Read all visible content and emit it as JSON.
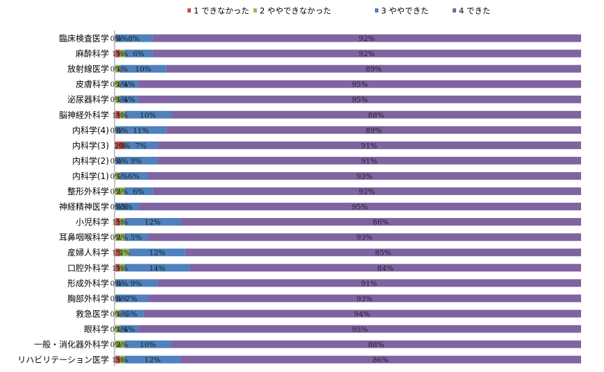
{
  "chart_data": {
    "type": "bar",
    "orientation": "horizontal",
    "stacked": "percent",
    "legend_position": "top",
    "grid": false,
    "series": [
      {
        "name": "1 できなかった",
        "color": "#C0504D"
      },
      {
        "name": "2 ややできなかった",
        "color": "#9BBB59"
      },
      {
        "name": "3 ややできた",
        "color": "#4F81BD"
      },
      {
        "name": "4 できた",
        "color": "#8064A2"
      }
    ],
    "categories": [
      {
        "name": "臨床検査医学",
        "values": [
          0,
          0,
          8,
          92
        ],
        "labels": [
          "0%",
          "0%",
          "8%",
          "92%"
        ]
      },
      {
        "name": "麻酔科学",
        "values": [
          1,
          1,
          6,
          92
        ],
        "labels": [
          "1%",
          "1%",
          "6%",
          "92%"
        ]
      },
      {
        "name": "放射線医学",
        "values": [
          0,
          1,
          10,
          89
        ],
        "labels": [
          "0%",
          "1%",
          "10%",
          "89%"
        ]
      },
      {
        "name": "皮膚科学",
        "values": [
          0,
          1,
          4,
          95
        ],
        "labels": [
          "0%",
          "1%",
          "4%",
          "95%"
        ]
      },
      {
        "name": "泌尿器科学",
        "values": [
          0,
          1,
          4,
          95
        ],
        "labels": [
          "0%",
          "1%",
          "4%",
          "95%"
        ]
      },
      {
        "name": "脳神経外科学",
        "values": [
          1,
          1,
          10,
          88
        ],
        "labels": [
          "1%",
          "1%",
          "10%",
          "88%"
        ]
      },
      {
        "name": "内科学(4)",
        "values": [
          0,
          0,
          11,
          89
        ],
        "labels": [
          "0%",
          "0%",
          "11%",
          "89%"
        ]
      },
      {
        "name": "内科学(3)",
        "values": [
          2,
          0,
          7,
          91
        ],
        "labels": [
          "2%",
          "0%",
          "7%",
          "91%"
        ]
      },
      {
        "name": "内科学(2)",
        "values": [
          0,
          0,
          9,
          91
        ],
        "labels": [
          "0%",
          "0%",
          "9%",
          "91%"
        ]
      },
      {
        "name": "内科学(1)",
        "values": [
          0,
          1,
          6,
          93
        ],
        "labels": [
          "0%",
          "1%",
          "6%",
          "93%"
        ]
      },
      {
        "name": "整形外科学",
        "values": [
          0,
          2,
          6,
          92
        ],
        "labels": [
          "0%",
          "2%",
          "6%",
          "92%"
        ]
      },
      {
        "name": "神経精神医学",
        "values": [
          0,
          0,
          5,
          95
        ],
        "labels": [
          "0%",
          "0%",
          "5%",
          "95%"
        ]
      },
      {
        "name": "小児科学",
        "values": [
          1,
          1,
          12,
          86
        ],
        "labels": [
          "1%",
          "1%",
          "12%",
          "86%"
        ]
      },
      {
        "name": "耳鼻咽喉科学",
        "values": [
          0,
          2,
          5,
          93
        ],
        "labels": [
          "0%",
          "2%",
          "5%",
          "93%"
        ]
      },
      {
        "name": "産婦人科学",
        "values": [
          1,
          2,
          12,
          85
        ],
        "labels": [
          "1%",
          "2%",
          "12%",
          "85%"
        ]
      },
      {
        "name": "口腔外科学",
        "values": [
          1,
          1,
          14,
          84
        ],
        "labels": [
          "1%",
          "1%",
          "14%",
          "84%"
        ]
      },
      {
        "name": "形成外科学",
        "values": [
          0,
          0,
          9,
          91
        ],
        "labels": [
          "0%",
          "0%",
          "9%",
          "91%"
        ]
      },
      {
        "name": "胸部外科学",
        "values": [
          0,
          0,
          7,
          93
        ],
        "labels": [
          "0%",
          "0%",
          "7%",
          "93%"
        ]
      },
      {
        "name": "救急医学",
        "values": [
          0,
          1,
          5,
          94
        ],
        "labels": [
          "0%",
          "1%",
          "5%",
          "94%"
        ]
      },
      {
        "name": "眼科学",
        "values": [
          0,
          1,
          4,
          95
        ],
        "labels": [
          "0%",
          "1%",
          "4%",
          "95%"
        ]
      },
      {
        "name": "一般・消化器外科学",
        "values": [
          0,
          2,
          10,
          88
        ],
        "labels": [
          "0%",
          "2%",
          "10%",
          "88%"
        ]
      },
      {
        "name": "リハビリテーション医学",
        "values": [
          1,
          1,
          12,
          86
        ],
        "labels": [
          "1%",
          "1%",
          "12%",
          "86%"
        ]
      }
    ],
    "xlim": [
      0,
      100
    ]
  }
}
